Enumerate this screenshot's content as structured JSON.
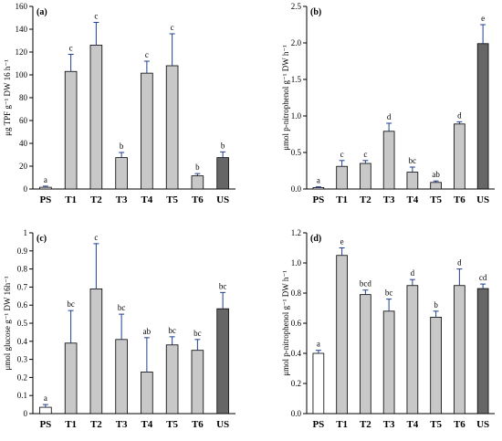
{
  "chart_data": [
    {
      "panel_label": "(a)",
      "type": "bar",
      "ylabel": "μg TPF g⁻¹ DW 16 h⁻¹",
      "ylim": [
        0,
        160
      ],
      "yticks": [
        0,
        20,
        40,
        60,
        80,
        100,
        120,
        140,
        160
      ],
      "categories": [
        "PS",
        "T1",
        "T2",
        "T3",
        "T4",
        "T5",
        "T6",
        "US"
      ],
      "values": [
        1.5,
        103,
        126,
        27.5,
        101.5,
        108,
        11.5,
        27.5
      ],
      "errors": [
        1,
        15,
        20,
        4.5,
        10.5,
        28,
        2,
        5
      ],
      "letters": [
        "a",
        "c",
        "c",
        "b",
        "c",
        "c",
        "b",
        "b"
      ],
      "bar_colors": [
        "#ffffff",
        "#c8c8c8",
        "#c8c8c8",
        "#c8c8c8",
        "#c8c8c8",
        "#c8c8c8",
        "#c8c8c8",
        "#666666"
      ]
    },
    {
      "panel_label": "(b)",
      "type": "bar",
      "ylabel": "μmol p-nitrophenol g⁻¹ DW h⁻¹",
      "ylim": [
        0,
        2.5
      ],
      "yticks": [
        0.0,
        0.5,
        1.0,
        1.5,
        2.0,
        2.5
      ],
      "tick_decimals": 1,
      "categories": [
        "PS",
        "T1",
        "T2",
        "T3",
        "T4",
        "T5",
        "T6",
        "US"
      ],
      "values": [
        0.02,
        0.31,
        0.35,
        0.79,
        0.23,
        0.09,
        0.89,
        1.99
      ],
      "errors": [
        0.01,
        0.08,
        0.04,
        0.11,
        0.07,
        0.02,
        0.03,
        0.26
      ],
      "letters": [
        "a",
        "c",
        "c",
        "d",
        "bc",
        "ab",
        "d",
        "e"
      ],
      "bar_colors": [
        "#ffffff",
        "#c8c8c8",
        "#c8c8c8",
        "#c8c8c8",
        "#c8c8c8",
        "#c8c8c8",
        "#c8c8c8",
        "#666666"
      ]
    },
    {
      "panel_label": "(c)",
      "type": "bar",
      "ylabel": "μmol glucose g⁻¹ DW 16h⁻¹",
      "ylim": [
        0,
        1.0
      ],
      "yticks": [
        0,
        0.1,
        0.2,
        0.3,
        0.4,
        0.5,
        0.6,
        0.7,
        0.8,
        0.9,
        1.0
      ],
      "tick_labels": [
        "0",
        "0.1",
        "0.2",
        "0.3",
        "0.4",
        "0.5",
        "0.6",
        "0.7",
        "0.8",
        "0.9",
        "1"
      ],
      "categories": [
        "PS",
        "T1",
        "T2",
        "T3",
        "T4",
        "T5",
        "T6",
        "US"
      ],
      "values": [
        0.035,
        0.39,
        0.69,
        0.41,
        0.23,
        0.38,
        0.35,
        0.58
      ],
      "errors": [
        0.015,
        0.18,
        0.25,
        0.14,
        0.19,
        0.045,
        0.06,
        0.09
      ],
      "letters": [
        "a",
        "bc",
        "c",
        "bc",
        "ab",
        "bc",
        "bc",
        "bc"
      ],
      "bar_colors": [
        "#ffffff",
        "#c8c8c8",
        "#c8c8c8",
        "#c8c8c8",
        "#c8c8c8",
        "#c8c8c8",
        "#c8c8c8",
        "#666666"
      ]
    },
    {
      "panel_label": "(d)",
      "type": "bar",
      "ylabel": "μmol p-nitrophenol g⁻¹ DW h⁻¹",
      "ylim": [
        0,
        1.2
      ],
      "yticks": [
        0.0,
        0.2,
        0.4,
        0.6,
        0.8,
        1.0,
        1.2
      ],
      "tick_decimals": 1,
      "categories": [
        "PS",
        "T1",
        "T2",
        "T3",
        "T4",
        "T5",
        "T6",
        "US"
      ],
      "values": [
        0.4,
        1.05,
        0.79,
        0.68,
        0.85,
        0.64,
        0.85,
        0.83
      ],
      "errors": [
        0.02,
        0.05,
        0.03,
        0.08,
        0.04,
        0.04,
        0.11,
        0.03
      ],
      "letters": [
        "a",
        "e",
        "bcd",
        "bc",
        "d",
        "b",
        "d",
        "cd"
      ],
      "bar_colors": [
        "#ffffff",
        "#c8c8c8",
        "#c8c8c8",
        "#c8c8c8",
        "#c8c8c8",
        "#c8c8c8",
        "#c8c8c8",
        "#666666"
      ]
    }
  ]
}
